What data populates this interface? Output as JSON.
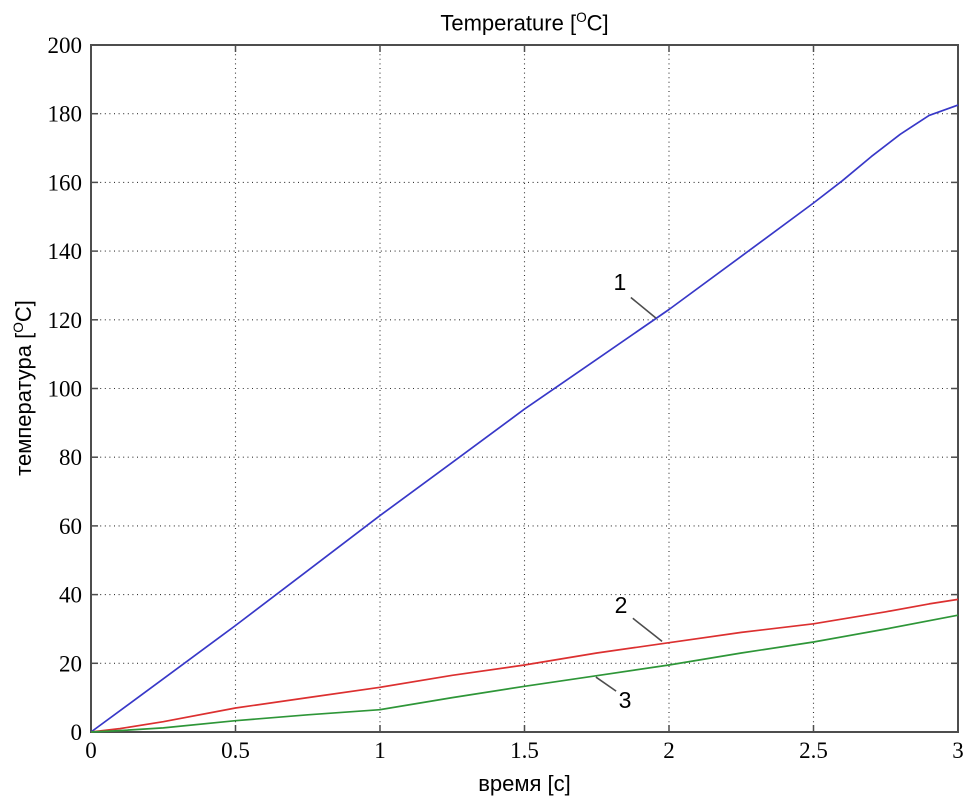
{
  "chart_data": {
    "type": "line",
    "title": {
      "prefix": "Temperature [",
      "sup": "O",
      "suffix": "C]"
    },
    "xlabel": "время [с]",
    "ylabel": {
      "prefix": "температура [",
      "sup": "O",
      "suffix": "C]"
    },
    "xlim": [
      0,
      3
    ],
    "ylim": [
      0,
      200
    ],
    "xticks": [
      0,
      0.5,
      1,
      1.5,
      2,
      2.5,
      3
    ],
    "xtick_labels": [
      "0",
      "0.5",
      "1",
      "1.5",
      "2",
      "2.5",
      "3"
    ],
    "yticks": [
      0,
      20,
      40,
      60,
      80,
      100,
      120,
      140,
      160,
      180,
      200
    ],
    "ytick_labels": [
      "0",
      "20",
      "40",
      "60",
      "80",
      "100",
      "120",
      "140",
      "160",
      "180",
      "200"
    ],
    "grid": {
      "style": "dotted",
      "color": "#333333"
    },
    "axis_color": "#4d4d4d",
    "leader_color": "#4d4d4d",
    "legend_position": "inline-annotations",
    "series": [
      {
        "name": "1",
        "color": "#3838C8",
        "points": [
          [
            0,
            0
          ],
          [
            0.25,
            15.5
          ],
          [
            0.5,
            31
          ],
          [
            0.75,
            47
          ],
          [
            1,
            63
          ],
          [
            1.25,
            78.5
          ],
          [
            1.5,
            94
          ],
          [
            1.75,
            108.5
          ],
          [
            2,
            123
          ],
          [
            2.25,
            138.5
          ],
          [
            2.5,
            154
          ],
          [
            2.6,
            160.5
          ],
          [
            2.7,
            167.5
          ],
          [
            2.8,
            174
          ],
          [
            2.9,
            179.5
          ],
          [
            3,
            182.5
          ]
        ]
      },
      {
        "name": "2",
        "color": "#DC3030",
        "points": [
          [
            0,
            0
          ],
          [
            0.1,
            1
          ],
          [
            0.25,
            3
          ],
          [
            0.5,
            7
          ],
          [
            0.75,
            10
          ],
          [
            1,
            13
          ],
          [
            1.25,
            16.5
          ],
          [
            1.5,
            19.5
          ],
          [
            1.75,
            23
          ],
          [
            2,
            26
          ],
          [
            2.25,
            29
          ],
          [
            2.5,
            31.5
          ],
          [
            2.75,
            35
          ],
          [
            2.9,
            37.3
          ],
          [
            3,
            38.6
          ]
        ]
      },
      {
        "name": "3",
        "color": "#2E9638",
        "points": [
          [
            0,
            0
          ],
          [
            0.1,
            0.4
          ],
          [
            0.25,
            1.2
          ],
          [
            0.5,
            3.3
          ],
          [
            0.75,
            5
          ],
          [
            1,
            6.5
          ],
          [
            1.25,
            10
          ],
          [
            1.5,
            13.3
          ],
          [
            1.75,
            16.4
          ],
          [
            2,
            19.5
          ],
          [
            2.25,
            23
          ],
          [
            2.5,
            26.2
          ],
          [
            2.75,
            30
          ],
          [
            3,
            34
          ]
        ]
      }
    ],
    "annotations": [
      {
        "label": "1",
        "label_xy": [
          1.83,
          131.0
        ],
        "leader_from": [
          1.868,
          126.5
        ],
        "leader_to": [
          1.955,
          120.5
        ]
      },
      {
        "label": "2",
        "label_xy": [
          1.834,
          37.0
        ],
        "leader_from": [
          1.875,
          33.1
        ],
        "leader_to": [
          1.976,
          26.4
        ]
      },
      {
        "label": "3",
        "label_xy": [
          1.848,
          9.3
        ],
        "leader_from": [
          1.817,
          11.9
        ],
        "leader_to": [
          1.747,
          16.0
        ]
      }
    ]
  }
}
